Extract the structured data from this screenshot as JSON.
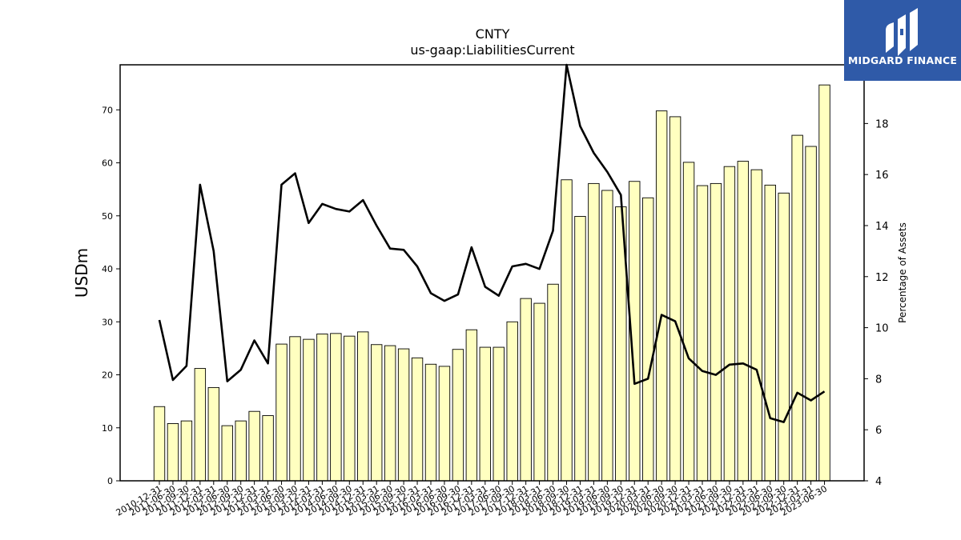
{
  "brand": {
    "name": "MIDGARD FINANCE",
    "color": "#2f5aa8"
  },
  "chart_data": {
    "type": "bar",
    "title": "CNTY",
    "subtitle": "us-gaap:LiabilitiesCurrent",
    "ylabel": "USDm",
    "y2label": "Percentage of Assets",
    "ylim": [
      0,
      78.5
    ],
    "y2lim": [
      4,
      20.3
    ],
    "yticks": [
      0,
      10,
      20,
      30,
      40,
      50,
      60,
      70
    ],
    "y2ticks": [
      4,
      6,
      8,
      10,
      12,
      14,
      16,
      18
    ],
    "grid": false,
    "bar_color": "#ffffc0",
    "line_color": "#000000",
    "categories": [
      "2010-12-31",
      "2011-06-30",
      "2011-09-30",
      "2011-12-31",
      "2012-03-31",
      "2012-06-30",
      "2012-09-30",
      "2012-12-31",
      "2013-03-31",
      "2013-06-30",
      "2013-09-30",
      "2013-12-31",
      "2014-03-31",
      "2014-06-30",
      "2014-09-30",
      "2014-12-31",
      "2015-03-31",
      "2015-06-30",
      "2015-09-30",
      "2015-12-31",
      "2016-03-31",
      "2016-06-30",
      "2016-09-30",
      "2016-12-31",
      "2017-03-31",
      "2017-06-30",
      "2017-09-30",
      "2017-12-31",
      "2018-03-31",
      "2018-06-30",
      "2018-09-30",
      "2018-12-31",
      "2019-03-31",
      "2019-06-30",
      "2019-09-30",
      "2019-12-31",
      "2020-03-31",
      "2020-06-30",
      "2020-09-30",
      "2020-12-31",
      "2021-03-31",
      "2021-06-30",
      "2021-09-30",
      "2021-12-31",
      "2022-03-31",
      "2022-06-30",
      "2022-09-30",
      "2022-12-31",
      "2023-03-31",
      "2023-06-30"
    ],
    "series": [
      {
        "type": "bar",
        "axis": "left",
        "values": [
          14.0,
          10.8,
          11.3,
          21.2,
          17.6,
          10.4,
          11.3,
          13.1,
          12.3,
          25.8,
          27.2,
          26.7,
          27.7,
          27.8,
          27.3,
          28.1,
          25.7,
          25.5,
          24.9,
          23.2,
          22.0,
          21.6,
          24.8,
          28.5,
          25.2,
          25.2,
          30.0,
          34.4,
          33.5,
          37.1,
          56.8,
          49.9,
          56.1,
          54.8,
          51.7,
          56.5,
          53.4,
          69.8,
          68.7,
          60.1,
          55.7,
          56.1,
          59.3,
          60.3,
          58.7,
          55.8,
          54.3,
          65.2,
          63.1,
          74.7
        ]
      },
      {
        "type": "line",
        "axis": "right",
        "values": [
          10.3,
          7.95,
          8.5,
          15.6,
          13.0,
          7.9,
          8.35,
          9.5,
          8.6,
          15.6,
          16.05,
          14.1,
          14.85,
          14.65,
          14.55,
          15.0,
          14.0,
          13.1,
          13.05,
          12.4,
          11.35,
          11.05,
          11.3,
          13.15,
          11.6,
          11.25,
          12.4,
          12.5,
          12.3,
          13.8,
          20.3,
          17.9,
          16.85,
          16.1,
          15.2,
          7.8,
          8.0,
          10.5,
          10.25,
          8.8,
          8.3,
          8.15,
          8.55,
          8.6,
          8.35,
          6.45,
          6.3,
          7.45,
          7.15,
          7.5
        ]
      }
    ]
  }
}
